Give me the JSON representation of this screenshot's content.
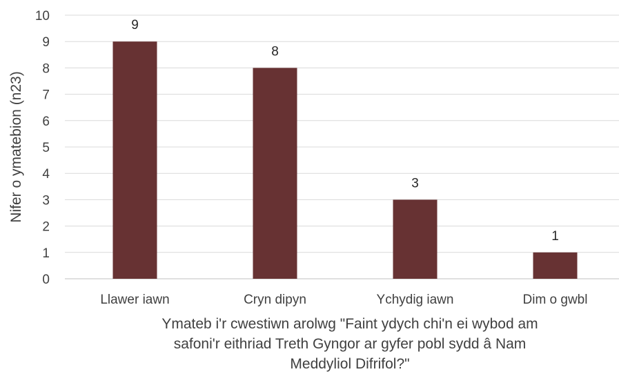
{
  "chart_data": {
    "type": "bar",
    "categories": [
      "Llawer iawn",
      "Cryn dipyn",
      "Ychydig iawn",
      "Dim o gwbl"
    ],
    "values": [
      9,
      8,
      3,
      1
    ],
    "data_labels": [
      "9",
      "8",
      "3",
      "1"
    ],
    "xlabel_lines": [
      "Ymateb i'r cwestiwn arolwg \"Faint ydych chi'n ei wybod am",
      "safoni'r eithriad Treth Gyngor ar gyfer pobl sydd â Nam",
      "Meddyliol Difrifol?\""
    ],
    "ylabel": "Nifer o ymatebion (n23)",
    "ylim": [
      0,
      10
    ],
    "yticks": [
      0,
      1,
      2,
      3,
      4,
      5,
      6,
      7,
      8,
      9,
      10
    ],
    "grid": true,
    "legend": "none",
    "bar_color": "#673233"
  }
}
